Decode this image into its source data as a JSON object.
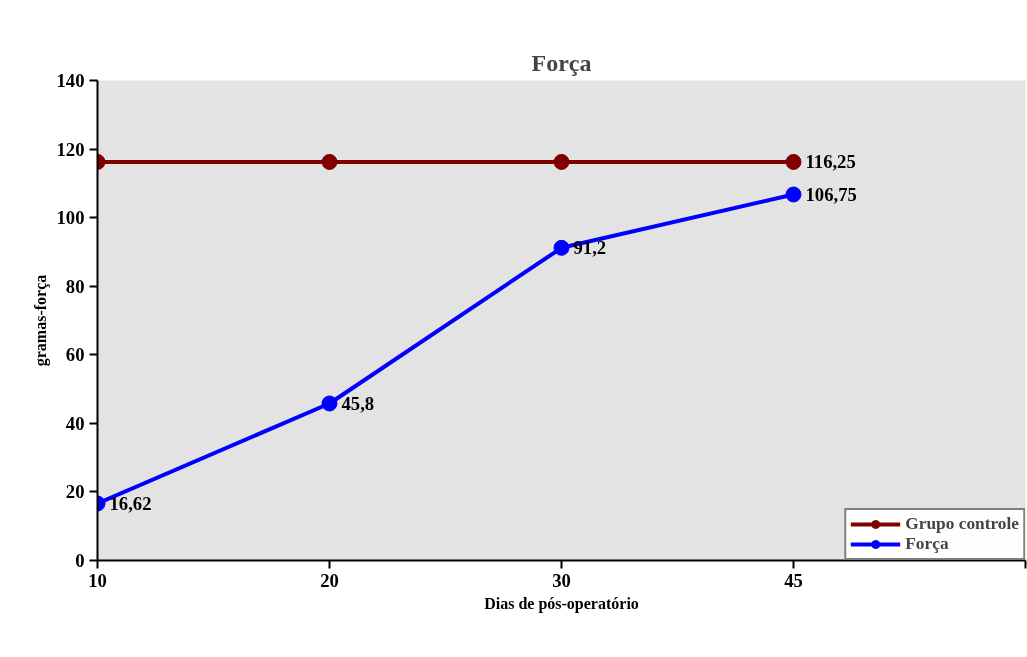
{
  "chart_data": {
    "type": "line",
    "title": "Força",
    "xlabel": "Dias de pós-operatório",
    "ylabel": "gramas-força",
    "categories": [
      "10",
      "20",
      "30",
      "45",
      null
    ],
    "series": [
      {
        "name": "Grupo controle",
        "color": "#800000",
        "values": [
          116.25,
          116.25,
          116.25,
          116.25,
          null
        ],
        "value_labels": [
          null,
          null,
          null,
          "116,25",
          null
        ]
      },
      {
        "name": "Força",
        "color": "#0000ff",
        "values": [
          16.62,
          45.8,
          91.2,
          106.75,
          null
        ],
        "value_labels": [
          "16,62",
          "45,8",
          "91,2",
          "106,75",
          null
        ]
      }
    ],
    "ylim": [
      0,
      140
    ],
    "yticks": [
      0,
      20,
      40,
      60,
      80,
      100,
      120,
      140
    ],
    "grid": false,
    "legend": "bottom right",
    "marker": "circle",
    "line_style": "solid"
  }
}
